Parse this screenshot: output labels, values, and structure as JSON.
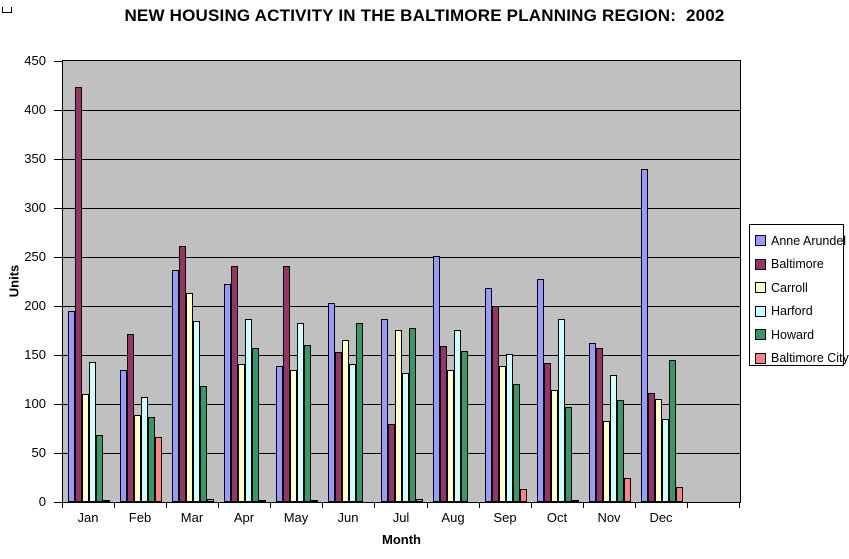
{
  "decorations": {
    "corner_mark_icon": "corner-bracket"
  },
  "chart_data": {
    "type": "bar",
    "title": "NEW HOUSING ACTIVITY IN THE BALTIMORE PLANNING REGION:  2002",
    "xlabel": "Month",
    "ylabel": "Units",
    "ylim": [
      0,
      450
    ],
    "ytick_interval": 50,
    "grid": "horizontal",
    "plot_background": "#C0C0C0",
    "legend_position": "right",
    "categories": [
      "Jan",
      "Feb",
      "Mar",
      "Apr",
      "May",
      "Jun",
      "Jul",
      "Aug",
      "Sep",
      "Oct",
      "Nov",
      "Dec"
    ],
    "series": [
      {
        "name": "Anne Arundel",
        "color": "#9999FF",
        "values": [
          195,
          135,
          237,
          222,
          139,
          203,
          187,
          251,
          218,
          228,
          162,
          340
        ]
      },
      {
        "name": "Baltimore",
        "color": "#993366",
        "values": [
          423,
          171,
          261,
          241,
          241,
          153,
          80,
          159,
          200,
          142,
          157,
          111
        ]
      },
      {
        "name": "Carroll",
        "color": "#FFFFCC",
        "values": [
          110,
          89,
          213,
          141,
          135,
          165,
          175,
          135,
          139,
          114,
          83,
          105
        ]
      },
      {
        "name": "Harford",
        "color": "#CCFFFF",
        "values": [
          143,
          107,
          185,
          187,
          183,
          141,
          132,
          175,
          151,
          187,
          130,
          85
        ]
      },
      {
        "name": "Howard",
        "color": "#339966",
        "values": [
          68,
          87,
          118,
          157,
          160,
          183,
          178,
          154,
          120,
          97,
          104,
          145
        ]
      },
      {
        "name": "Baltimore City",
        "color": "#FF8080",
        "values": [
          1,
          66,
          3,
          1,
          2,
          0,
          3,
          0,
          13,
          2,
          24,
          15
        ]
      }
    ]
  }
}
